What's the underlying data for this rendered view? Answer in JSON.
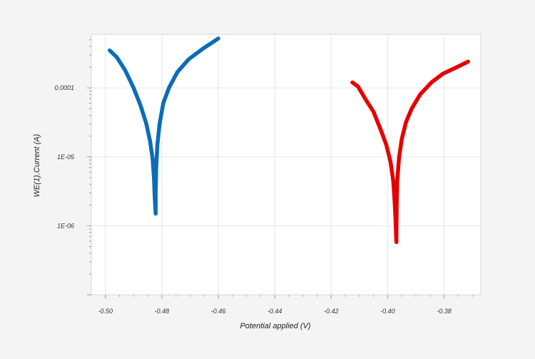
{
  "chart_data": {
    "type": "line",
    "title": "",
    "xlabel": "Potential applied (V)",
    "ylabel": "WE(1).Current (A)",
    "xlim": [
      -0.505,
      -0.367
    ],
    "ylim": [
      1e-07,
      0.0006
    ],
    "y_scale": "log",
    "grid": true,
    "legend": "none",
    "x_ticks": [
      "-0.50",
      "-0.48",
      "-0.46",
      "-0.44",
      "-0.42",
      "-0.40",
      "-0.38"
    ],
    "x_tick_values": [
      -0.5,
      -0.48,
      -0.46,
      -0.44,
      -0.42,
      -0.4,
      -0.38
    ],
    "y_ticks": [
      "0.0001",
      "1E-05",
      "1E-06"
    ],
    "y_tick_values": [
      0.0001,
      1e-05,
      1e-06
    ],
    "series": [
      {
        "color": "#0b6cb8",
        "x": [
          -0.4985,
          -0.496,
          -0.493,
          -0.49,
          -0.4875,
          -0.4855,
          -0.4842,
          -0.4833,
          -0.4828,
          -0.4825,
          -0.4823,
          -0.4822,
          -0.4822,
          -0.4822,
          -0.482,
          -0.4816,
          -0.4808,
          -0.4795,
          -0.4775,
          -0.4745,
          -0.4705,
          -0.4655,
          -0.46
        ],
        "y": [
          0.00035,
          0.00028,
          0.00018,
          0.0001,
          5.5e-05,
          3e-05,
          1.7e-05,
          9.5e-06,
          5e-06,
          2.5e-06,
          1.8e-06,
          1.5e-06,
          1.6e-06,
          3e-06,
          7e-06,
          1.5e-05,
          3e-05,
          6e-05,
          0.0001,
          0.00017,
          0.00026,
          0.00037,
          0.00052
        ]
      },
      {
        "color": "#e50000",
        "x": [
          -0.4125,
          -0.4105,
          -0.408,
          -0.405,
          -0.4025,
          -0.4005,
          -0.399,
          -0.398,
          -0.3975,
          -0.3972,
          -0.397,
          -0.3969,
          -0.3969,
          -0.3968,
          -0.3966,
          -0.396,
          -0.395,
          -0.3935,
          -0.3915,
          -0.3885,
          -0.3845,
          -0.3805,
          -0.3755,
          -0.3715
        ],
        "y": [
          0.00012,
          0.000105,
          7e-05,
          4.5e-05,
          2.5e-05,
          1.5e-05,
          8.5e-06,
          4.5e-06,
          2.2e-06,
          1.2e-06,
          7e-07,
          5.8e-07,
          8e-07,
          2e-06,
          4.5e-06,
          9.5e-06,
          1.8e-05,
          3.2e-05,
          5e-05,
          8e-05,
          0.00012,
          0.00016,
          0.0002,
          0.00024
        ]
      }
    ]
  }
}
